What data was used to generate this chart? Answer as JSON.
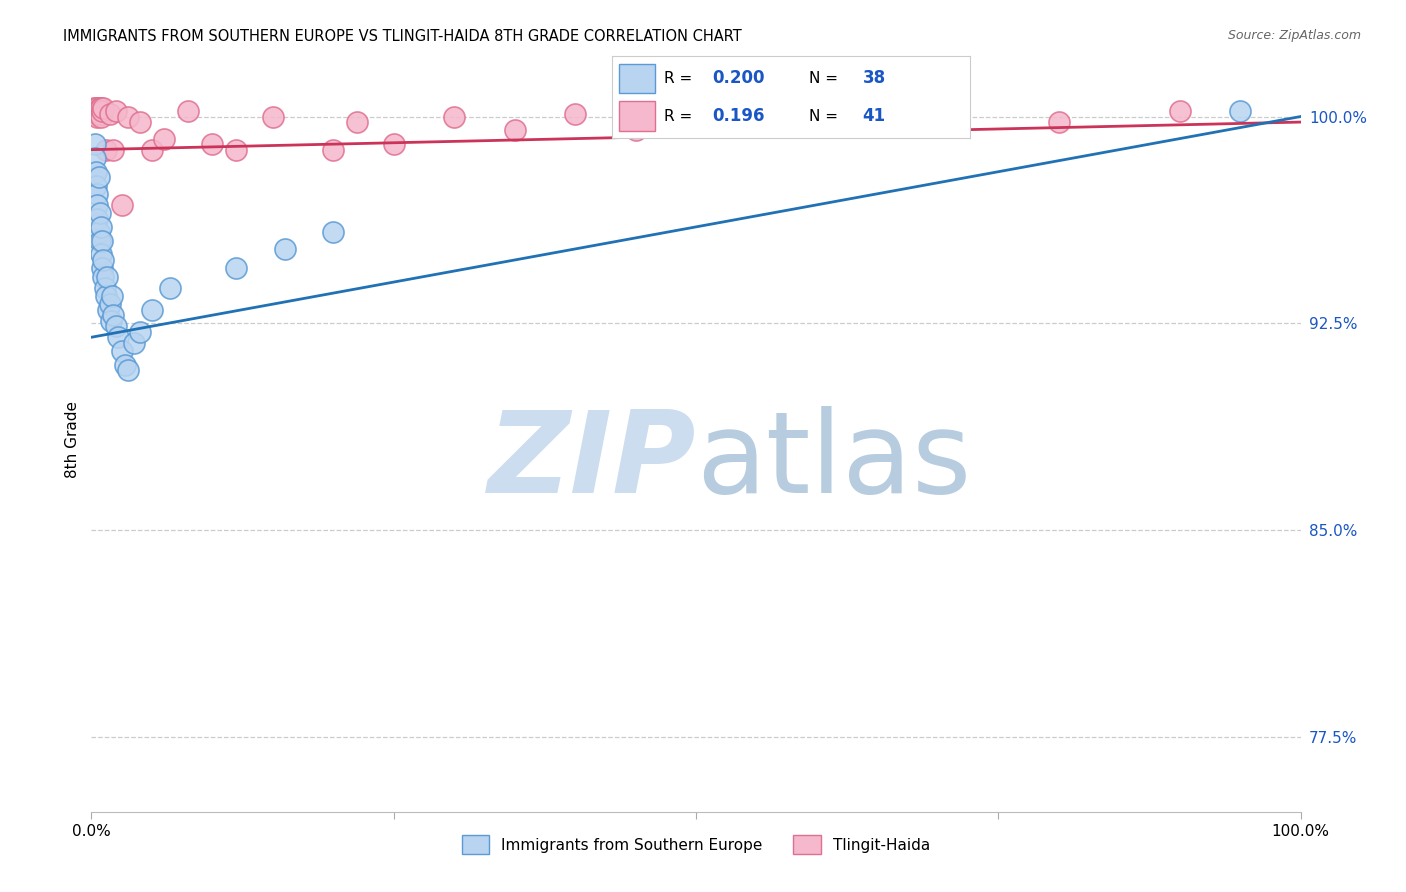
{
  "title": "IMMIGRANTS FROM SOUTHERN EUROPE VS TLINGIT-HAIDA 8TH GRADE CORRELATION CHART",
  "source": "Source: ZipAtlas.com",
  "ylabel": "8th Grade",
  "xlim": [
    0.0,
    1.0
  ],
  "ylim": [
    0.748,
    1.018
  ],
  "yticks": [
    0.775,
    0.85,
    0.925,
    1.0
  ],
  "ytick_labels": [
    "77.5%",
    "85.0%",
    "92.5%",
    "100.0%"
  ],
  "xtick_labels": [
    "0.0%",
    "",
    "",
    "",
    "100.0%"
  ],
  "blue_R": "0.200",
  "blue_N": "38",
  "pink_R": "0.196",
  "pink_N": "41",
  "blue_fill": "#b8d4f0",
  "blue_edge": "#5b9bd5",
  "pink_fill": "#f5b8cc",
  "pink_edge": "#e07090",
  "blue_line_color": "#2171b5",
  "pink_line_color": "#cc3358",
  "legend_val_color": "#1a56c4",
  "grid_color": "#cccccc",
  "blue_line_y0": 0.92,
  "blue_line_y1": 1.0,
  "pink_line_y0": 0.988,
  "pink_line_y1": 0.998,
  "blue_x": [
    0.003,
    0.003,
    0.004,
    0.004,
    0.005,
    0.005,
    0.005,
    0.006,
    0.006,
    0.007,
    0.007,
    0.008,
    0.008,
    0.009,
    0.009,
    0.01,
    0.01,
    0.011,
    0.012,
    0.013,
    0.014,
    0.015,
    0.016,
    0.017,
    0.018,
    0.02,
    0.022,
    0.025,
    0.028,
    0.03,
    0.035,
    0.04,
    0.05,
    0.065,
    0.12,
    0.16,
    0.2,
    0.95
  ],
  "blue_y": [
    0.99,
    0.985,
    0.98,
    0.975,
    0.972,
    0.968,
    0.963,
    0.978,
    0.958,
    0.965,
    0.955,
    0.96,
    0.95,
    0.955,
    0.945,
    0.942,
    0.948,
    0.938,
    0.935,
    0.942,
    0.93,
    0.932,
    0.926,
    0.935,
    0.928,
    0.924,
    0.92,
    0.915,
    0.91,
    0.908,
    0.918,
    0.922,
    0.93,
    0.938,
    0.945,
    0.952,
    0.958,
    1.002
  ],
  "pink_x": [
    0.002,
    0.003,
    0.003,
    0.004,
    0.004,
    0.005,
    0.005,
    0.005,
    0.006,
    0.006,
    0.007,
    0.007,
    0.008,
    0.008,
    0.009,
    0.01,
    0.012,
    0.015,
    0.018,
    0.02,
    0.025,
    0.03,
    0.04,
    0.05,
    0.06,
    0.08,
    0.1,
    0.12,
    0.15,
    0.2,
    0.22,
    0.25,
    0.3,
    0.35,
    0.4,
    0.45,
    0.5,
    0.6,
    0.7,
    0.8,
    0.9
  ],
  "pink_y": [
    1.003,
    1.002,
    1.001,
    1.003,
    1.001,
    1.003,
    1.002,
    1.0,
    1.002,
    1.001,
    1.003,
    1.001,
    1.003,
    1.0,
    1.002,
    1.003,
    0.988,
    1.001,
    0.988,
    1.002,
    0.968,
    1.0,
    0.998,
    0.988,
    0.992,
    1.002,
    0.99,
    0.988,
    1.0,
    0.988,
    0.998,
    0.99,
    1.0,
    0.995,
    1.001,
    0.995,
    0.998,
    1.0,
    0.998,
    0.998,
    1.002
  ]
}
